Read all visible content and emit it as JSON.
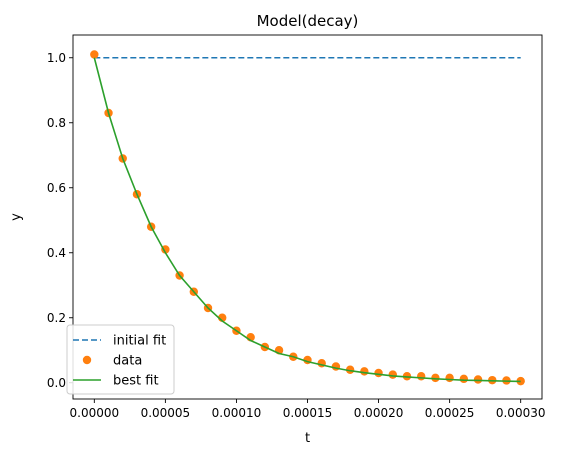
{
  "chart_data": {
    "type": "line",
    "title": "Model(decay)",
    "xlabel": "t",
    "ylabel": "y",
    "xlim": [
      -1.5e-05,
      0.000315
    ],
    "ylim": [
      -0.05,
      1.07
    ],
    "x_ticks": [
      0,
      5e-05,
      0.0001,
      0.00015,
      0.0002,
      0.00025,
      0.0003
    ],
    "x_tick_labels": [
      "0.00000",
      "0.00005",
      "0.00010",
      "0.00015",
      "0.00020",
      "0.00025",
      "0.00030"
    ],
    "y_ticks": [
      0,
      0.2,
      0.4,
      0.6,
      0.8,
      1.0
    ],
    "y_tick_labels": [
      "0.0",
      "0.2",
      "0.4",
      "0.6",
      "0.8",
      "1.0"
    ],
    "grid": false,
    "legend_position": "lower-left",
    "series": [
      {
        "name": "initial fit",
        "style": "dashed",
        "color": "#1f77b4",
        "x": [
          0,
          0.0003
        ],
        "y": [
          1.0,
          1.0
        ]
      },
      {
        "name": "data",
        "style": "markers",
        "color": "#ff7f0e",
        "x": [
          0,
          1e-05,
          2e-05,
          3e-05,
          4e-05,
          5e-05,
          6e-05,
          7e-05,
          8e-05,
          9e-05,
          0.0001,
          0.00011,
          0.00012,
          0.00013,
          0.00014,
          0.00015,
          0.00016,
          0.00017,
          0.00018,
          0.00019,
          0.0002,
          0.00021,
          0.00022,
          0.00023,
          0.00024,
          0.00025,
          0.00026,
          0.00027,
          0.00028,
          0.00029,
          0.0003
        ],
        "y": [
          1.01,
          0.83,
          0.69,
          0.58,
          0.48,
          0.41,
          0.33,
          0.28,
          0.23,
          0.2,
          0.16,
          0.14,
          0.11,
          0.1,
          0.08,
          0.07,
          0.06,
          0.05,
          0.04,
          0.035,
          0.03,
          0.025,
          0.02,
          0.02,
          0.015,
          0.015,
          0.012,
          0.01,
          0.008,
          0.007,
          0.005
        ]
      },
      {
        "name": "best fit",
        "style": "solid",
        "color": "#2ca02c",
        "x": [
          0,
          1e-05,
          2e-05,
          3e-05,
          4e-05,
          5e-05,
          6e-05,
          7e-05,
          8e-05,
          9e-05,
          0.0001,
          0.00011,
          0.00012,
          0.00013,
          0.00014,
          0.00015,
          0.00016,
          0.00017,
          0.00018,
          0.00019,
          0.0002,
          0.00021,
          0.00022,
          0.00023,
          0.00024,
          0.00025,
          0.00026,
          0.00027,
          0.00028,
          0.00029,
          0.0003
        ],
        "y": [
          1.0,
          0.83,
          0.69,
          0.58,
          0.48,
          0.4,
          0.33,
          0.28,
          0.23,
          0.19,
          0.16,
          0.13,
          0.11,
          0.09,
          0.08,
          0.065,
          0.055,
          0.045,
          0.037,
          0.031,
          0.026,
          0.021,
          0.018,
          0.015,
          0.012,
          0.01,
          0.008,
          0.007,
          0.006,
          0.005,
          0.004
        ]
      }
    ]
  }
}
